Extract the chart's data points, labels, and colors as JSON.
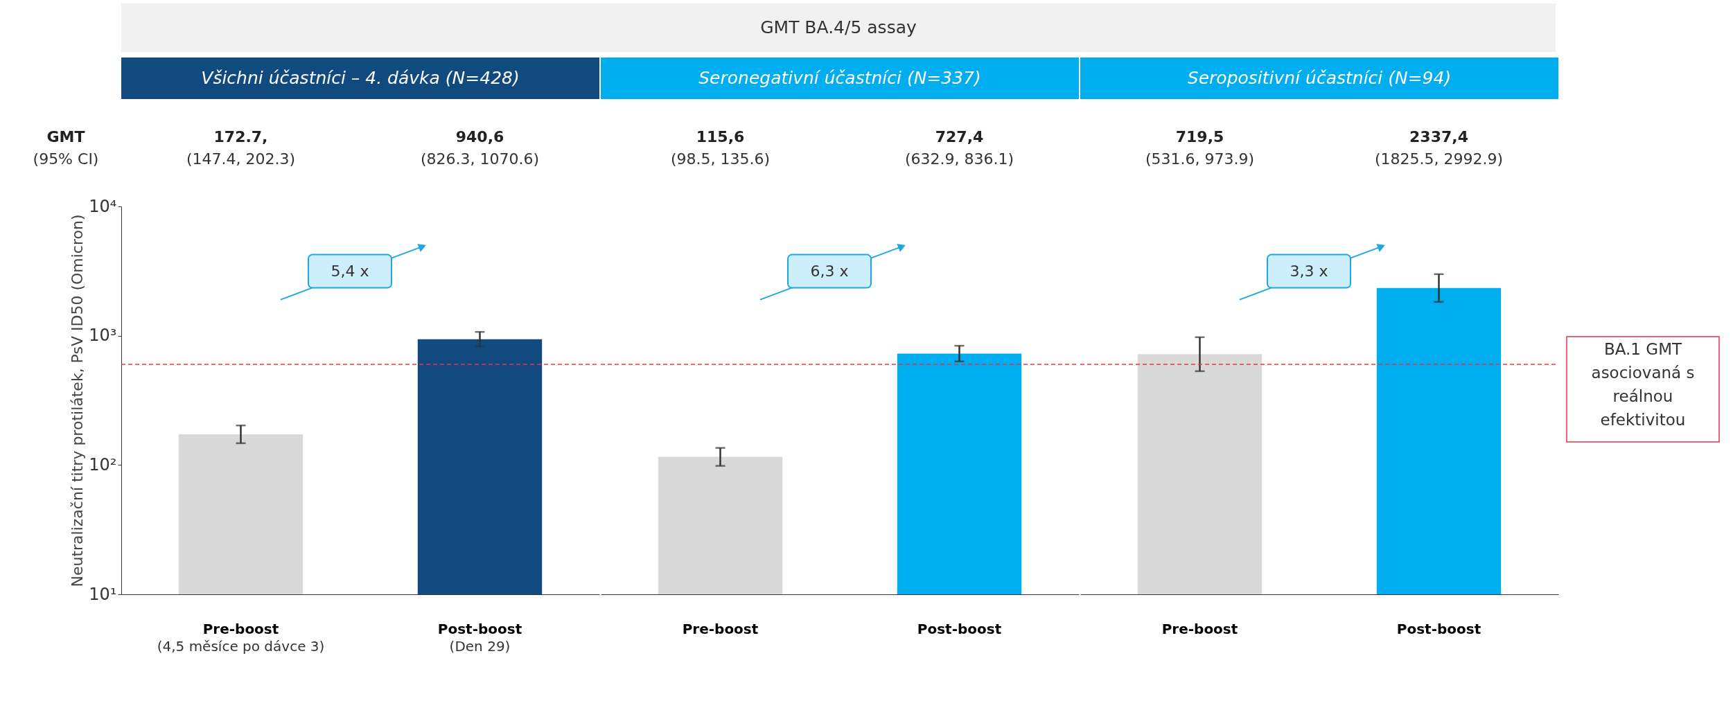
{
  "chart_data": [
    {
      "type": "bar",
      "title": "Všichni účastníci – 4. dávka (N=428)",
      "ylabel": "Neutralizační titry protilátek, PsV ID50 (Omicron)",
      "categories": [
        "Pre-boost\n(4,5 měsíce po dávce 3)",
        "Post-boost\n(Den 29)"
      ],
      "values": [
        172.7,
        940.6
      ],
      "colors": [
        "#d9d9d9",
        "#114a7e"
      ],
      "errors": [
        [
          147.4,
          202.3
        ],
        [
          826.3,
          1070.6
        ]
      ],
      "value_labels": [
        "172.7,\n(147.4, 202.3)",
        "940,6\n(826.3, 1070.6)"
      ],
      "log": true,
      "ylim": [
        10,
        10000
      ],
      "yticks": [
        {
          "value": 10,
          "label": "10¹"
        },
        {
          "value": 100,
          "label": "10²"
        },
        {
          "value": 1000,
          "label": "10³"
        },
        {
          "value": 10000,
          "label": "10⁴"
        }
      ],
      "ref_lines": [
        {
          "axis": "y",
          "value": 600,
          "color": "#e8334a",
          "line_style": "dashed"
        }
      ],
      "annotations": [
        "GMT BA.4/5 assay",
        "GMT\n(95% CI)",
        "5,4 x"
      ],
      "grid": false
    },
    {
      "type": "bar",
      "title": "Seronegativní účastníci  (N=337)",
      "categories": [
        "Pre-boost",
        "Post-boost"
      ],
      "values": [
        115.6,
        727.4
      ],
      "colors": [
        "#d9d9d9",
        "#00adee"
      ],
      "errors": [
        [
          98.5,
          135.6
        ],
        [
          632.9,
          836.1
        ]
      ],
      "value_labels": [
        "115,6\n(98.5, 135.6)",
        "727,4\n(632.9, 836.1)"
      ],
      "log": true,
      "ylim": [
        10,
        10000
      ],
      "tick_labels": "x",
      "ref_lines": [
        {
          "axis": "y",
          "value": 600,
          "color": "#e8334a",
          "line_style": "dashed"
        }
      ],
      "annotations": [
        "6,3 x"
      ],
      "grid": false
    },
    {
      "type": "bar",
      "title": "Seropositivní účastníci (N=94)",
      "categories": [
        "Pre-boost",
        "Post-boost"
      ],
      "values": [
        719.5,
        2337.4
      ],
      "colors": [
        "#d9d9d9",
        "#00adee"
      ],
      "errors": [
        [
          531.6,
          973.9
        ],
        [
          1825.5,
          2992.9
        ]
      ],
      "value_labels": [
        "719,5\n(531.6, 973.9)",
        "2337,4\n(1825.5, 2992.9)"
      ],
      "log": true,
      "ylim": [
        10,
        10000
      ],
      "tick_labels": "x",
      "ref_lines": [
        {
          "axis": "y",
          "value": 600,
          "label": "BA.1 GMT\nasociovaná s\nreálnou\nefektivitou",
          "color": "#e8334a",
          "line_style": "dashed"
        }
      ],
      "annotations": [
        "3,3 x"
      ],
      "grid": false
    }
  ]
}
